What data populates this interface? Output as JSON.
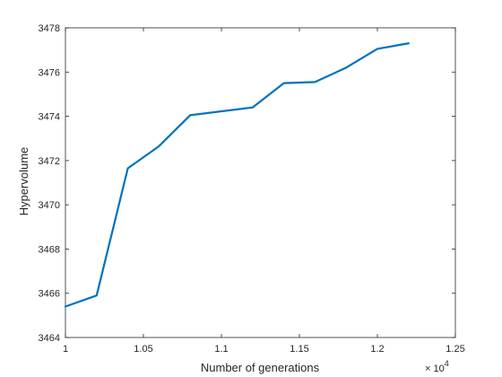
{
  "chart_data": {
    "type": "line",
    "title": "",
    "xlabel": "Number of generations",
    "ylabel": "Hypervolume",
    "x_exponent_label": "× 10",
    "x_exponent_power": "4",
    "xlim": [
      1.0,
      1.25
    ],
    "ylim": [
      3464,
      3478
    ],
    "x_ticks": [
      1.0,
      1.05,
      1.1,
      1.15,
      1.2,
      1.25
    ],
    "x_tick_labels": [
      "1",
      "1.05",
      "1.1",
      "1.15",
      "1.2",
      "1.25"
    ],
    "y_ticks": [
      3464,
      3466,
      3468,
      3470,
      3472,
      3474,
      3476,
      3478
    ],
    "y_tick_labels": [
      "3464",
      "3466",
      "3468",
      "3470",
      "3472",
      "3474",
      "3476",
      "3478"
    ],
    "grid": false,
    "series": [
      {
        "color": "#0072BD",
        "x": [
          1.0,
          1.02,
          1.04,
          1.06,
          1.08,
          1.12,
          1.14,
          1.16,
          1.18,
          1.2,
          1.22
        ],
        "y": [
          3465.4,
          3465.9,
          3471.65,
          3472.65,
          3474.05,
          3474.4,
          3475.5,
          3475.55,
          3476.2,
          3477.05,
          3477.3
        ]
      }
    ]
  }
}
